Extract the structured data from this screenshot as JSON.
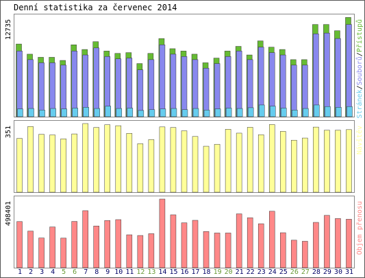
{
  "chart_data": [
    {
      "type": "bar",
      "title": "Denní statistika za červenec 2014",
      "ylabel": "12735",
      "legend_placement": "right",
      "legend": [
        {
          "text": "Stránek",
          "color": "#66ccee"
        },
        {
          "text": "/",
          "color": "#000000"
        },
        {
          "text": "Souborů",
          "color": "#8888ee"
        },
        {
          "text": "/",
          "color": "#000000"
        },
        {
          "text": "Přístupů",
          "color": "#66bb33"
        }
      ],
      "ylim": [
        0,
        12735
      ],
      "categories": [
        "1",
        "2",
        "3",
        "4",
        "5",
        "6",
        "7",
        "8",
        "9",
        "10",
        "11",
        "12",
        "13",
        "14",
        "15",
        "16",
        "17",
        "18",
        "19",
        "20",
        "21",
        "22",
        "23",
        "24",
        "25",
        "26",
        "27",
        "28",
        "29",
        "30",
        "31"
      ],
      "series": [
        {
          "name": "Přístupů",
          "color": "#66bb33",
          "values": [
            9300,
            8000,
            7600,
            7600,
            7200,
            9200,
            8600,
            9600,
            8400,
            8100,
            8200,
            6800,
            8100,
            10000,
            8700,
            8400,
            8000,
            6900,
            7500,
            8400,
            9000,
            7900,
            9700,
            8900,
            8600,
            7300,
            7300,
            11800,
            11800,
            11000,
            12700
          ]
        },
        {
          "name": "Souborů",
          "color": "#8888ee",
          "values": [
            8400,
            7300,
            6900,
            6900,
            6600,
            8400,
            7900,
            8800,
            7700,
            7400,
            7500,
            6000,
            7300,
            9200,
            8000,
            7700,
            7300,
            6200,
            6800,
            7700,
            8400,
            7300,
            8900,
            8200,
            7900,
            6600,
            6600,
            10600,
            10700,
            10000,
            11800
          ]
        },
        {
          "name": "Stránek",
          "color": "#66ccee",
          "values": [
            1000,
            1050,
            850,
            1050,
            1000,
            1100,
            1200,
            1050,
            1350,
            1050,
            1100,
            800,
            900,
            1000,
            1050,
            900,
            1050,
            850,
            1000,
            1100,
            1050,
            1150,
            1500,
            1350,
            1100,
            850,
            1050,
            1500,
            1300,
            1200,
            1300
          ]
        }
      ],
      "day_label_colors": [
        "#000066",
        "#000066",
        "#000066",
        "#000066",
        "#669933",
        "#669933",
        "#000066",
        "#000066",
        "#000066",
        "#000066",
        "#000066",
        "#669933",
        "#669933",
        "#000066",
        "#000066",
        "#000066",
        "#000066",
        "#000066",
        "#669933",
        "#669933",
        "#000066",
        "#000066",
        "#000066",
        "#000066",
        "#000066",
        "#669933",
        "#669933",
        "#000066",
        "#000066",
        "#000066",
        "#000066"
      ]
    },
    {
      "type": "bar",
      "ylabel": "351",
      "legend": [
        {
          "text": "Návštěv",
          "color": "#ffff99"
        }
      ],
      "ylim": [
        0,
        351
      ],
      "categories": [
        "1",
        "2",
        "3",
        "4",
        "5",
        "6",
        "7",
        "8",
        "9",
        "10",
        "11",
        "12",
        "13",
        "14",
        "15",
        "16",
        "17",
        "18",
        "19",
        "20",
        "21",
        "22",
        "23",
        "24",
        "25",
        "26",
        "27",
        "28",
        "29",
        "30",
        "31"
      ],
      "series": [
        {
          "name": "Návštěv",
          "color": "#ffff99",
          "values": [
            275,
            336,
            296,
            293,
            273,
            298,
            351,
            331,
            345,
            340,
            301,
            248,
            269,
            334,
            331,
            314,
            285,
            235,
            245,
            322,
            302,
            332,
            294,
            346,
            311,
            266,
            277,
            333,
            317,
            317,
            320
          ]
        }
      ]
    },
    {
      "type": "bar",
      "ylabel": "498401",
      "legend": [
        {
          "text": "Objem přenosu",
          "color": "#ff8888"
        }
      ],
      "ylim": [
        0,
        498401
      ],
      "categories": [
        "1",
        "2",
        "3",
        "4",
        "5",
        "6",
        "7",
        "8",
        "9",
        "10",
        "11",
        "12",
        "13",
        "14",
        "15",
        "16",
        "17",
        "18",
        "19",
        "20",
        "21",
        "22",
        "23",
        "24",
        "25",
        "26",
        "27",
        "28",
        "29",
        "30",
        "31"
      ],
      "series": [
        {
          "name": "Objem přenosu",
          "color": "#ff8888",
          "values": [
            335000,
            266000,
            216000,
            296000,
            215000,
            336000,
            414000,
            303000,
            343000,
            349000,
            239000,
            234000,
            247000,
            498401,
            384000,
            326000,
            344000,
            263000,
            252000,
            252000,
            391000,
            363000,
            319000,
            410000,
            254000,
            200000,
            192000,
            329000,
            380000,
            357000,
            352000
          ]
        }
      ]
    }
  ]
}
